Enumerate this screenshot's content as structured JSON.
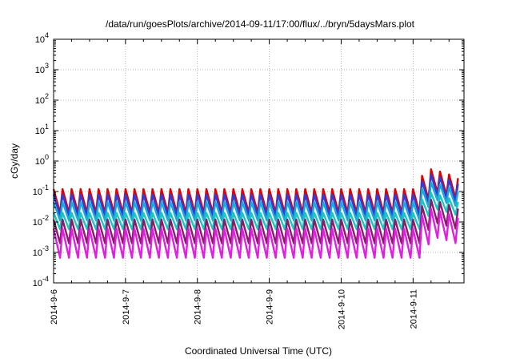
{
  "chart_data": {
    "type": "line",
    "title": "/data/run/goesPlots/archive/2014-09-11/17:00/flux/../bryn/5daysMars.plot",
    "xlabel": "Coordinated Universal Time (UTC)",
    "ylabel": "cGy/day",
    "y_scale": "log",
    "ylim": [
      0.0001,
      10000
    ],
    "y_ticks": [
      {
        "value": 0.0001,
        "base": "10",
        "exp": "-4"
      },
      {
        "value": 0.001,
        "base": "10",
        "exp": "-3"
      },
      {
        "value": 0.01,
        "base": "10",
        "exp": "-2"
      },
      {
        "value": 0.1,
        "base": "10",
        "exp": "-1"
      },
      {
        "value": 1,
        "base": "10",
        "exp": "0"
      },
      {
        "value": 10,
        "base": "10",
        "exp": "1"
      },
      {
        "value": 100,
        "base": "10",
        "exp": "2"
      },
      {
        "value": 1000,
        "base": "10",
        "exp": "3"
      },
      {
        "value": 10000,
        "base": "10",
        "exp": "4"
      }
    ],
    "xlim": [
      "2014-09-06T00:00",
      "2014-09-11T17:00"
    ],
    "x_ticks": [
      "2014-9-6",
      "2014-9-7",
      "2014-9-8",
      "2014-9-9",
      "2014-9-10",
      "2014-9-11"
    ],
    "grid": true,
    "cycles_per_day": 8,
    "series": [
      {
        "color": "#e00000",
        "base": 0.12,
        "drop": 6
      },
      {
        "color": "#2a3fe0",
        "base": 0.08,
        "drop": 5
      },
      {
        "color": "#1aa8d8",
        "base": 0.045,
        "drop": 4
      },
      {
        "color": "#18c8c0",
        "base": 0.02,
        "drop": 3.5
      },
      {
        "color": "#8a1a6a",
        "base": 0.012,
        "drop": 6
      },
      {
        "color": "#e020e0",
        "base": 0.006,
        "drop": 9
      }
    ],
    "event": {
      "start": "2014-09-11T00:00",
      "peak": "2014-09-11T06:00",
      "peak_factor": 4.5,
      "end_factor": 1.8
    }
  }
}
